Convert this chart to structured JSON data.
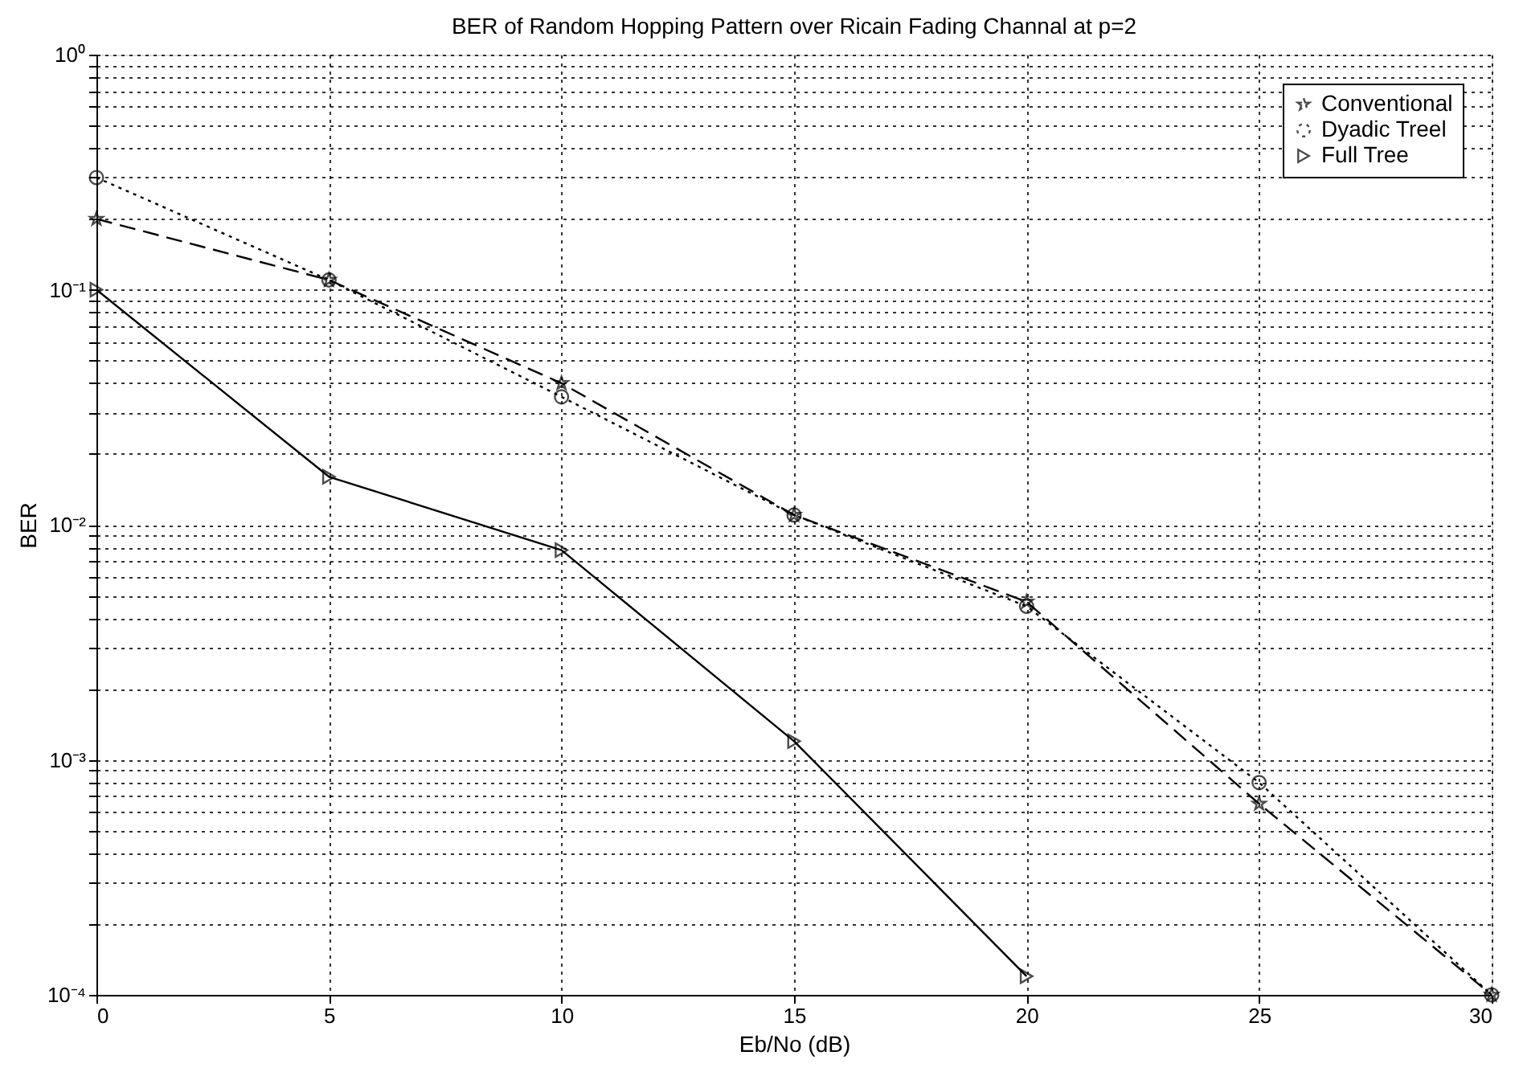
{
  "chart_data": {
    "type": "line",
    "title": "BER of Random Hopping Pattern  over Ricain Fading Channal at p=2",
    "xlabel": "Eb/No (dB)",
    "ylabel": "BER",
    "x": [
      0,
      5,
      10,
      15,
      20,
      25,
      30
    ],
    "series": [
      {
        "name": "Conventional",
        "color": "#000000",
        "marker": "star",
        "line_style": "dashed",
        "values": [
          0.2,
          0.11,
          0.04,
          0.011,
          0.0047,
          0.00065,
          0.0001
        ]
      },
      {
        "name": "Dyadic Treel",
        "color": "#000000",
        "marker": "circle",
        "line_style": "dotted",
        "values": [
          0.3,
          0.11,
          0.035,
          0.011,
          0.0045,
          0.0008,
          0.0001
        ]
      },
      {
        "name": "Full Tree",
        "color": "#000000",
        "marker": "triangle",
        "line_style": "solid",
        "values": [
          0.1,
          0.016,
          0.0078,
          0.0012,
          0.00012,
          null,
          null
        ]
      }
    ],
    "log": "y",
    "xlim": [
      0,
      30
    ],
    "xticks": [
      0,
      5,
      10,
      15,
      20,
      25,
      30
    ],
    "ylim": [
      0.0001,
      1
    ],
    "yticks": [
      {
        "value": 0.0001,
        "label": "10⁻⁴"
      },
      {
        "value": 0.0002,
        "label": null
      },
      {
        "value": 0.0003,
        "label": null
      },
      {
        "value": 0.0004,
        "label": null
      },
      {
        "value": 0.0005,
        "label": null
      },
      {
        "value": 0.0006,
        "label": null
      },
      {
        "value": 0.0007,
        "label": null
      },
      {
        "value": 0.0008,
        "label": null
      },
      {
        "value": 0.0009,
        "label": null
      },
      {
        "value": 0.001,
        "label": "10⁻³"
      },
      {
        "value": 0.002,
        "label": null
      },
      {
        "value": 0.003,
        "label": null
      },
      {
        "value": 0.004,
        "label": null
      },
      {
        "value": 0.005,
        "label": null
      },
      {
        "value": 0.006,
        "label": null
      },
      {
        "value": 0.007,
        "label": null
      },
      {
        "value": 0.008,
        "label": null
      },
      {
        "value": 0.009,
        "label": null
      },
      {
        "value": 0.01,
        "label": "10⁻²"
      },
      {
        "value": 0.02,
        "label": null
      },
      {
        "value": 0.03,
        "label": null
      },
      {
        "value": 0.04,
        "label": null
      },
      {
        "value": 0.05,
        "label": null
      },
      {
        "value": 0.06,
        "label": null
      },
      {
        "value": 0.07,
        "label": null
      },
      {
        "value": 0.08,
        "label": null
      },
      {
        "value": 0.09,
        "label": null
      },
      {
        "value": 0.1,
        "label": "10⁻¹"
      },
      {
        "value": 0.2,
        "label": null
      },
      {
        "value": 0.3,
        "label": null
      },
      {
        "value": 0.4,
        "label": null
      },
      {
        "value": 0.5,
        "label": null
      },
      {
        "value": 0.6,
        "label": null
      },
      {
        "value": 0.7,
        "label": null
      },
      {
        "value": 0.8,
        "label": null
      },
      {
        "value": 0.9,
        "label": null
      },
      {
        "value": 1,
        "label": "10⁰"
      }
    ],
    "grid": true,
    "legend": "top right"
  }
}
